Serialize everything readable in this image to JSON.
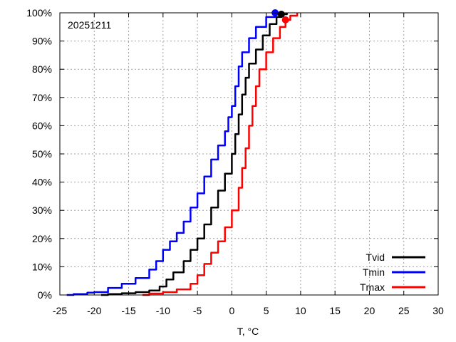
{
  "chart_data": {
    "type": "line",
    "title": "",
    "annotation": "20251211",
    "xlabel": "T, °C",
    "ylabel": "",
    "xlim": [
      -25,
      30
    ],
    "ylim": [
      0,
      100
    ],
    "x_ticks": [
      -25,
      -20,
      -15,
      -10,
      -5,
      0,
      5,
      10,
      15,
      20,
      25,
      30
    ],
    "y_ticks": [
      0,
      10,
      20,
      30,
      40,
      50,
      60,
      70,
      80,
      90,
      100
    ],
    "y_tick_labels": [
      "0%",
      "10%",
      "20%",
      "30%",
      "40%",
      "50%",
      "60%",
      "70%",
      "80%",
      "90%",
      "100%"
    ],
    "grid": true,
    "legend_position": "bottom-right",
    "series": [
      {
        "name": "Tvid",
        "color": "#000000",
        "marker": {
          "x": 7.2,
          "y": 99.5
        },
        "points": [
          [
            -19,
            0
          ],
          [
            -18,
            0.3
          ],
          [
            -16,
            0.6
          ],
          [
            -14,
            1.0
          ],
          [
            -12,
            1.6
          ],
          [
            -10.5,
            3
          ],
          [
            -9.5,
            5.5
          ],
          [
            -8.5,
            8
          ],
          [
            -7,
            12
          ],
          [
            -6,
            16
          ],
          [
            -5,
            20
          ],
          [
            -4,
            25
          ],
          [
            -3,
            31
          ],
          [
            -2,
            37
          ],
          [
            -1,
            43
          ],
          [
            0,
            50
          ],
          [
            0.5,
            57
          ],
          [
            1,
            64
          ],
          [
            1.5,
            71
          ],
          [
            2,
            77
          ],
          [
            2.5,
            82
          ],
          [
            3.5,
            87
          ],
          [
            4.5,
            92
          ],
          [
            5.5,
            96
          ],
          [
            6.5,
            98.5
          ],
          [
            7.2,
            99.5
          ],
          [
            8,
            100
          ]
        ]
      },
      {
        "name": "Tmin",
        "color": "#0000ff",
        "marker": {
          "x": 6.3,
          "y": 100
        },
        "points": [
          [
            -24,
            0
          ],
          [
            -23,
            0.3
          ],
          [
            -21,
            0.8
          ],
          [
            -20,
            1.0
          ],
          [
            -18,
            2.5
          ],
          [
            -16,
            4
          ],
          [
            -14,
            6
          ],
          [
            -12,
            9
          ],
          [
            -11,
            12
          ],
          [
            -10,
            16
          ],
          [
            -9,
            19
          ],
          [
            -8,
            22
          ],
          [
            -7,
            26
          ],
          [
            -6,
            31
          ],
          [
            -5,
            36
          ],
          [
            -4,
            42
          ],
          [
            -3,
            48
          ],
          [
            -2,
            53
          ],
          [
            -1,
            58
          ],
          [
            -0.5,
            63
          ],
          [
            0,
            67
          ],
          [
            0.5,
            74
          ],
          [
            1,
            81
          ],
          [
            1.5,
            86
          ],
          [
            2.5,
            91
          ],
          [
            3.5,
            95
          ],
          [
            5,
            98.5
          ],
          [
            6.3,
            100
          ]
        ]
      },
      {
        "name": "Tmax",
        "color": "#ff0000",
        "marker": {
          "x": 7.8,
          "y": 97.5
        },
        "points": [
          [
            -13,
            0
          ],
          [
            -12,
            0.5
          ],
          [
            -10,
            1
          ],
          [
            -8,
            2
          ],
          [
            -6,
            4
          ],
          [
            -5,
            7
          ],
          [
            -4,
            11
          ],
          [
            -3,
            15
          ],
          [
            -2,
            19
          ],
          [
            -1,
            24
          ],
          [
            0,
            30
          ],
          [
            1,
            38
          ],
          [
            1.5,
            45
          ],
          [
            2,
            52
          ],
          [
            2.5,
            60
          ],
          [
            3,
            67
          ],
          [
            3.5,
            74
          ],
          [
            4,
            80
          ],
          [
            5,
            86
          ],
          [
            6,
            91
          ],
          [
            7,
            95
          ],
          [
            7.8,
            97.5
          ],
          [
            8.5,
            99
          ],
          [
            9.5,
            100
          ]
        ]
      }
    ]
  }
}
